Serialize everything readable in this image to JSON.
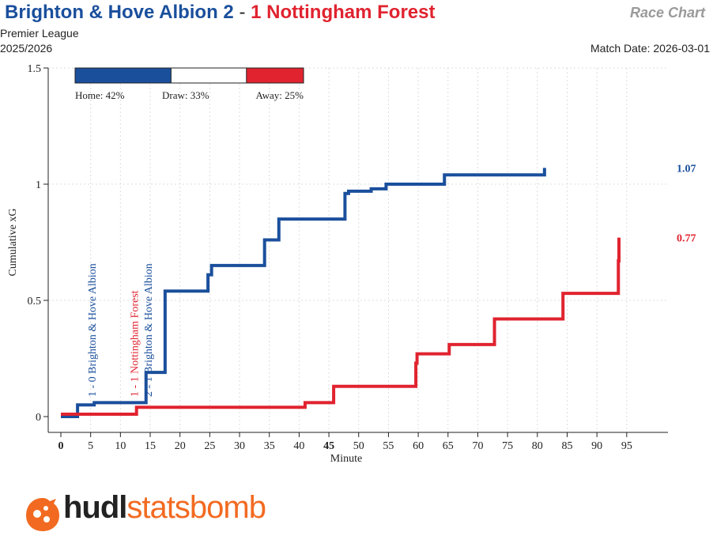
{
  "header": {
    "home_title": "Brighton & Hove Albion 2",
    "separator": "-",
    "away_title": "1 Nottingham Forest",
    "chart_label": "Race Chart",
    "competition": "Premier League",
    "season": "2025/2026",
    "match_date": "Match Date: 2026-03-01"
  },
  "colors": {
    "home": "#1a4f9c",
    "away": "#e0232f",
    "draw": "#ffffff",
    "logo_orange": "#f26a21"
  },
  "probability_bar": {
    "home": 42,
    "draw": 33,
    "away": 25,
    "home_label": "Home: 42%",
    "draw_label": "Draw: 33%",
    "away_label": "Away: 25%"
  },
  "chart_data": {
    "type": "line",
    "xlabel": "Minute",
    "ylabel": "Cumulative xG",
    "xlim": [
      0,
      97
    ],
    "ylim": [
      0,
      1.5
    ],
    "xticks": [
      0,
      5,
      10,
      15,
      20,
      25,
      30,
      35,
      40,
      45,
      50,
      55,
      60,
      65,
      70,
      75,
      80,
      85,
      90,
      95
    ],
    "xtick_labels": [
      "0",
      "5",
      "10",
      "15",
      "20",
      "25",
      "30",
      "35",
      "40",
      "45",
      "50",
      "55",
      "60",
      "65",
      "70",
      "75",
      "80",
      "85",
      "90",
      "95"
    ],
    "bold_xticks": [
      0,
      45
    ],
    "yticks": [
      0,
      0.5,
      1,
      1.5
    ],
    "ytick_labels": [
      "0",
      "0.5",
      "1",
      "1.5"
    ],
    "grid": true,
    "series": [
      {
        "side": "home",
        "final_label": "1.07",
        "steps": [
          [
            0,
            0
          ],
          [
            2.8,
            0.05
          ],
          [
            5.6,
            0.06
          ],
          [
            14.3,
            0.19
          ],
          [
            17.5,
            0.54
          ],
          [
            24.7,
            0.61
          ],
          [
            25.3,
            0.65
          ],
          [
            34.2,
            0.76
          ],
          [
            36.6,
            0.85
          ],
          [
            47.7,
            0.96
          ],
          [
            48.3,
            0.97
          ],
          [
            52.1,
            0.98
          ],
          [
            54.6,
            1.0
          ],
          [
            64.4,
            1.04
          ],
          [
            81.2,
            1.07
          ]
        ],
        "end_x": 81.2
      },
      {
        "side": "away",
        "final_label": "0.77",
        "steps": [
          [
            0,
            0.01
          ],
          [
            12.7,
            0.04
          ],
          [
            41.0,
            0.06
          ],
          [
            45.8,
            0.13
          ],
          [
            59.6,
            0.23
          ],
          [
            59.8,
            0.27
          ],
          [
            65.2,
            0.31
          ],
          [
            72.8,
            0.42
          ],
          [
            84.3,
            0.53
          ],
          [
            93.6,
            0.67
          ],
          [
            93.7,
            0.77
          ]
        ],
        "end_x": 93.7
      }
    ],
    "annotations": [
      {
        "side": "home",
        "text": "1 - 0 Brighton & Hove Albion",
        "minute": 5.2
      },
      {
        "side": "away",
        "text": "1 - 1 Nottingham Forest",
        "minute": 12.3
      },
      {
        "side": "home",
        "text": "2 - 1 Brighton & Hove Albion",
        "minute": 14.6
      }
    ]
  },
  "logo": {
    "part1": "hudl",
    "part2": "statsbomb"
  }
}
